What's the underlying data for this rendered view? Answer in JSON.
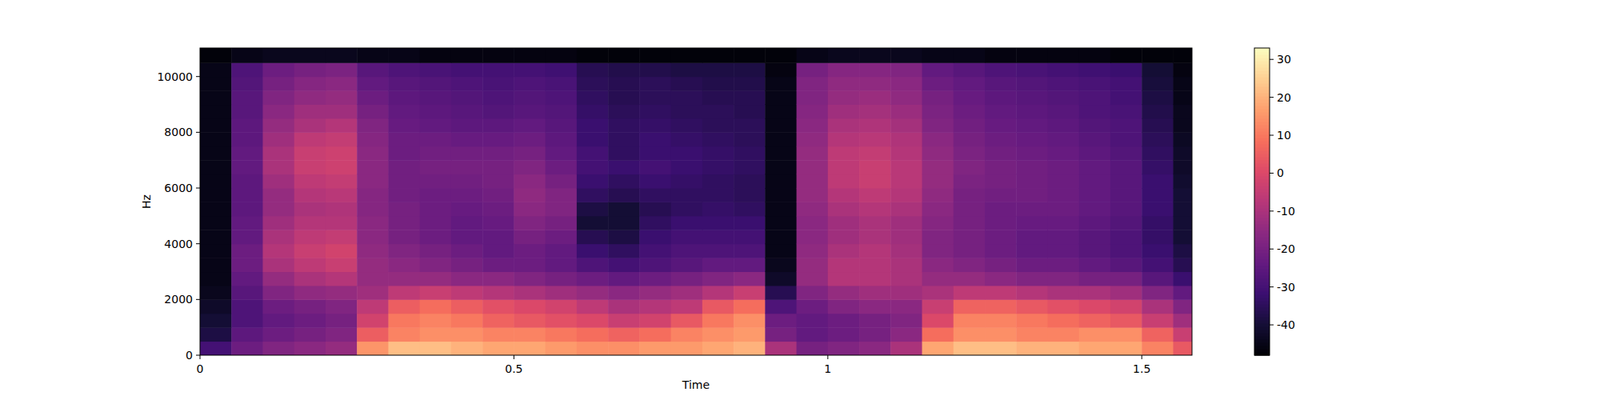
{
  "chart_data": {
    "type": "heatmap",
    "x_label": "Time",
    "y_label": "Hz",
    "xlim": [
      0,
      1.58
    ],
    "ylim": [
      0,
      11025
    ],
    "xticks": [
      0,
      0.5,
      1,
      1.5
    ],
    "yticks": [
      0,
      2000,
      4000,
      6000,
      8000,
      10000
    ],
    "x_bins": [
      0,
      0.05,
      0.1,
      0.15,
      0.2,
      0.25,
      0.3,
      0.35,
      0.4,
      0.45,
      0.5,
      0.55,
      0.6,
      0.65,
      0.7,
      0.75,
      0.8,
      0.85,
      0.9,
      0.95,
      1.0,
      1.05,
      1.1,
      1.15,
      1.2,
      1.25,
      1.3,
      1.35,
      1.4,
      1.45,
      1.5,
      1.55,
      1.58
    ],
    "y_bins": [
      0,
      500,
      1000,
      1500,
      2000,
      2500,
      3000,
      3500,
      4000,
      4500,
      5000,
      5500,
      6000,
      6500,
      7000,
      7500,
      8000,
      8500,
      9000,
      9500,
      10000,
      10500,
      11025
    ],
    "values": [
      [
        -30,
        -38,
        -40,
        -42,
        -44,
        -45,
        -45,
        -45,
        -45,
        -45,
        -45,
        -45,
        -45,
        -45,
        -45,
        -45,
        -45,
        -45,
        -45,
        -45,
        -45,
        -47
      ],
      [
        -22,
        -25,
        -28,
        -28,
        -26,
        -24,
        -22,
        -22,
        -24,
        -24,
        -25,
        -25,
        -25,
        -24,
        -24,
        -25,
        -25,
        -26,
        -26,
        -27,
        -28,
        -45
      ],
      [
        -18,
        -22,
        -24,
        -22,
        -18,
        -14,
        -10,
        -8,
        -10,
        -12,
        -14,
        -14,
        -12,
        -10,
        -10,
        -12,
        -14,
        -16,
        -18,
        -20,
        -22,
        -44
      ],
      [
        -16,
        -20,
        -22,
        -20,
        -15,
        -10,
        -6,
        -4,
        -6,
        -8,
        -10,
        -8,
        -6,
        -4,
        -4,
        -6,
        -10,
        -12,
        -15,
        -17,
        -20,
        -44
      ],
      [
        -14,
        -18,
        -20,
        -18,
        -14,
        -8,
        -4,
        -2,
        -5,
        -8,
        -9,
        -7,
        -5,
        -3,
        -3,
        -5,
        -8,
        -12,
        -14,
        -16,
        -19,
        -44
      ],
      [
        15,
        5,
        -2,
        -6,
        -12,
        -14,
        -14,
        -15,
        -16,
        -16,
        -17,
        -17,
        -16,
        -16,
        -16,
        -17,
        -18,
        -20,
        -22,
        -24,
        -26,
        -45
      ],
      [
        22,
        12,
        10,
        5,
        -6,
        -14,
        -16,
        -18,
        -20,
        -20,
        -20,
        -21,
        -21,
        -21,
        -22,
        -22,
        -23,
        -24,
        -25,
        -26,
        -28,
        -45
      ],
      [
        22,
        14,
        12,
        8,
        -4,
        -14,
        -18,
        -20,
        -22,
        -22,
        -22,
        -22,
        -21,
        -20,
        -21,
        -22,
        -24,
        -25,
        -26,
        -27,
        -29,
        -46
      ],
      [
        20,
        14,
        10,
        5,
        -6,
        -16,
        -20,
        -22,
        -24,
        -24,
        -23,
        -22,
        -21,
        -20,
        -21,
        -23,
        -25,
        -26,
        -27,
        -28,
        -30,
        -46
      ],
      [
        18,
        12,
        6,
        2,
        -8,
        -16,
        -22,
        -24,
        -24,
        -23,
        -22,
        -21,
        -20,
        -20,
        -21,
        -23,
        -25,
        -27,
        -28,
        -29,
        -30,
        -46
      ],
      [
        18,
        12,
        4,
        0,
        -10,
        -18,
        -22,
        -22,
        -20,
        -18,
        -16,
        -15,
        -16,
        -18,
        -20,
        -22,
        -24,
        -26,
        -27,
        -28,
        -30,
        -46
      ],
      [
        16,
        10,
        2,
        -2,
        -12,
        -20,
        -24,
        -24,
        -22,
        -20,
        -18,
        -18,
        -20,
        -22,
        -24,
        -25,
        -26,
        -27,
        -28,
        -29,
        -31,
        -46
      ],
      [
        14,
        8,
        0,
        -6,
        -14,
        -22,
        -28,
        -32,
        -36,
        -40,
        -38,
        -34,
        -32,
        -30,
        -30,
        -32,
        -32,
        -33,
        -34,
        -35,
        -36,
        -47
      ],
      [
        14,
        6,
        -4,
        -10,
        -16,
        -24,
        -30,
        -34,
        -38,
        -40,
        -40,
        -36,
        -34,
        -32,
        -34,
        -34,
        -34,
        -35,
        -36,
        -36,
        -37,
        -47
      ],
      [
        16,
        8,
        -2,
        -8,
        -14,
        -22,
        -28,
        -30,
        -32,
        -34,
        -36,
        -34,
        -32,
        -30,
        -32,
        -32,
        -33,
        -34,
        -35,
        -35,
        -37,
        -47
      ],
      [
        16,
        12,
        4,
        -6,
        -12,
        -20,
        -26,
        -28,
        -30,
        -32,
        -34,
        -34,
        -33,
        -32,
        -32,
        -33,
        -34,
        -35,
        -35,
        -36,
        -38,
        -47
      ],
      [
        18,
        14,
        10,
        4,
        -8,
        -18,
        -24,
        -28,
        -30,
        -32,
        -33,
        -34,
        -34,
        -33,
        -33,
        -34,
        -35,
        -35,
        -36,
        -37,
        -38,
        -47
      ],
      [
        20,
        16,
        14,
        8,
        -4,
        -16,
        -24,
        -28,
        -30,
        -32,
        -34,
        -35,
        -35,
        -34,
        -34,
        -35,
        -35,
        -36,
        -36,
        -37,
        -38,
        -47
      ],
      [
        -10,
        -20,
        -22,
        -28,
        -36,
        -42,
        -44,
        -45,
        -45,
        -45,
        -45,
        -45,
        -45,
        -45,
        -45,
        -45,
        -45,
        -45,
        -45,
        -45,
        -46,
        -47
      ],
      [
        -20,
        -24,
        -24,
        -22,
        -18,
        -14,
        -14,
        -15,
        -16,
        -16,
        -15,
        -14,
        -14,
        -14,
        -14,
        -15,
        -16,
        -17,
        -18,
        -18,
        -20,
        -45
      ],
      [
        -18,
        -22,
        -22,
        -18,
        -14,
        -8,
        -8,
        -10,
        -12,
        -12,
        -10,
        -8,
        -6,
        -6,
        -6,
        -8,
        -10,
        -12,
        -14,
        -15,
        -17,
        -44
      ],
      [
        -16,
        -20,
        -20,
        -16,
        -12,
        -8,
        -8,
        -8,
        -10,
        -10,
        -8,
        -6,
        -4,
        -4,
        -5,
        -7,
        -9,
        -11,
        -13,
        -15,
        -17,
        -44
      ],
      [
        -10,
        -16,
        -18,
        -16,
        -12,
        -10,
        -10,
        -11,
        -12,
        -12,
        -10,
        -8,
        -7,
        -7,
        -8,
        -9,
        -11,
        -13,
        -15,
        -16,
        -18,
        -44
      ],
      [
        18,
        8,
        0,
        -4,
        -10,
        -14,
        -16,
        -18,
        -18,
        -17,
        -16,
        -15,
        -14,
        -14,
        -15,
        -16,
        -18,
        -19,
        -20,
        -22,
        -24,
        -45
      ],
      [
        22,
        14,
        12,
        6,
        -6,
        -14,
        -18,
        -20,
        -20,
        -20,
        -20,
        -20,
        -19,
        -18,
        -19,
        -20,
        -21,
        -22,
        -23,
        -24,
        -26,
        -45
      ],
      [
        22,
        14,
        12,
        6,
        -6,
        -16,
        -20,
        -22,
        -22,
        -22,
        -22,
        -21,
        -20,
        -20,
        -21,
        -22,
        -23,
        -24,
        -25,
        -26,
        -28,
        -46
      ],
      [
        20,
        12,
        10,
        4,
        -8,
        -18,
        -22,
        -24,
        -24,
        -23,
        -22,
        -21,
        -21,
        -21,
        -22,
        -23,
        -24,
        -25,
        -26,
        -27,
        -29,
        -46
      ],
      [
        20,
        12,
        8,
        2,
        -10,
        -18,
        -22,
        -24,
        -24,
        -23,
        -22,
        -22,
        -22,
        -22,
        -23,
        -24,
        -25,
        -26,
        -27,
        -28,
        -30,
        -46
      ],
      [
        18,
        14,
        6,
        0,
        -10,
        -20,
        -24,
        -26,
        -26,
        -25,
        -24,
        -24,
        -24,
        -24,
        -25,
        -26,
        -27,
        -28,
        -28,
        -29,
        -31,
        -46
      ],
      [
        18,
        14,
        4,
        -2,
        -12,
        -20,
        -26,
        -28,
        -28,
        -27,
        -26,
        -26,
        -26,
        -26,
        -27,
        -28,
        -28,
        -29,
        -30,
        -30,
        -32,
        -47
      ],
      [
        12,
        6,
        -4,
        -10,
        -18,
        -26,
        -30,
        -32,
        -33,
        -33,
        -32,
        -32,
        -32,
        -33,
        -34,
        -35,
        -36,
        -37,
        -38,
        -39,
        -40,
        -47
      ],
      [
        4,
        -4,
        -12,
        -18,
        -24,
        -32,
        -36,
        -38,
        -40,
        -40,
        -40,
        -40,
        -41,
        -42,
        -42,
        -43,
        -44,
        -44,
        -45,
        -45,
        -46,
        -47
      ]
    ],
    "colorbar": {
      "range": [
        -48,
        33
      ],
      "ticks": [
        -40,
        -30,
        -20,
        -10,
        0,
        10,
        20,
        30
      ]
    }
  }
}
